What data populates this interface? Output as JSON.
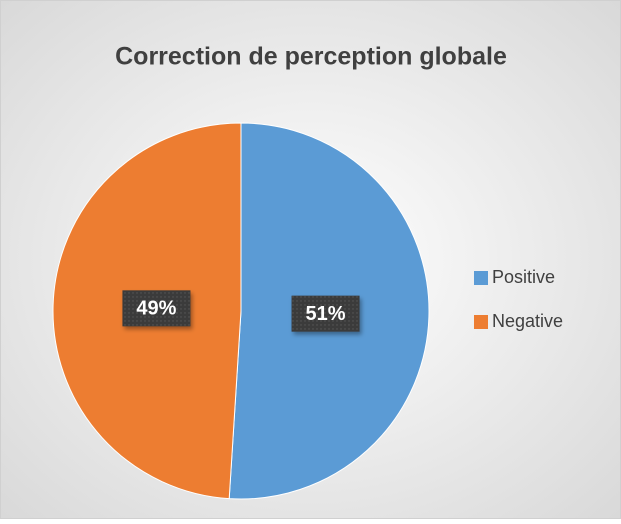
{
  "chart_data": {
    "type": "pie",
    "title": "Correction de perception globale",
    "categories": [
      "Positive",
      "Negative"
    ],
    "values": [
      51,
      49
    ],
    "value_labels": [
      "51%",
      "49%"
    ],
    "colors": [
      "#5b9bd5",
      "#ed7d31"
    ]
  }
}
